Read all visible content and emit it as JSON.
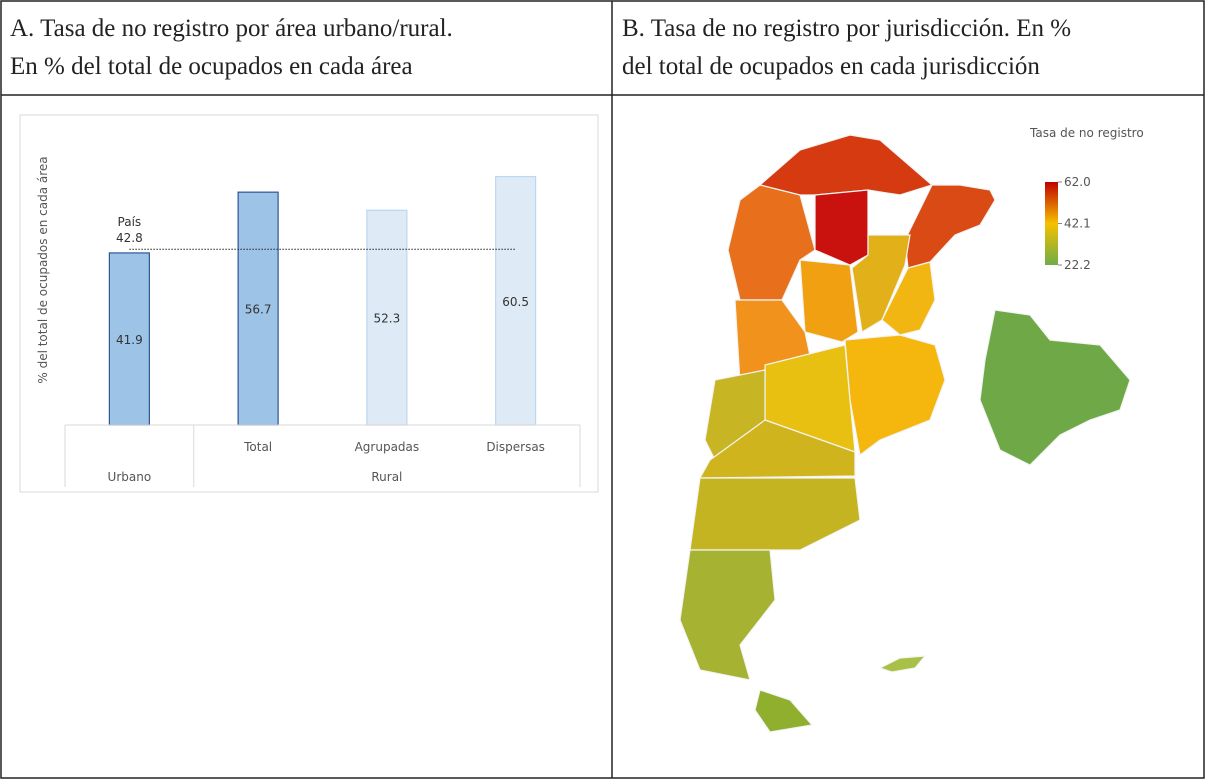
{
  "panels": [
    {
      "title_lines": [
        "A. Tasa de no registro por área urbano/rural.",
        "En % del total de ocupados en cada área"
      ]
    },
    {
      "title_lines": [
        "B. Tasa de no registro por jurisdicción. En %",
        "del total de ocupados en cada jurisdicción"
      ]
    }
  ],
  "chart_data": {
    "type": "bar",
    "y_label": "% del total de ocupados en cada área",
    "categories": [
      null,
      "Total",
      "Agrupadas",
      "Dispersas"
    ],
    "groups": [
      {
        "label": "Urbano",
        "span": 1
      },
      {
        "label": "Rural",
        "span": 3
      }
    ],
    "values": [
      41.9,
      56.7,
      52.3,
      60.5
    ],
    "colors": [
      "#9dc3e6",
      "#9dc3e6",
      "#deebf7",
      "#deebf7"
    ],
    "edge_colors": [
      "#2f5597",
      "#2f5597",
      "#bdd7ee",
      "#bdd7ee"
    ],
    "reference": {
      "label": "País",
      "value": 42.8
    },
    "ylim": [
      0,
      75
    ]
  },
  "map_legend": {
    "title": "Tasa de no registro",
    "ticks": [
      {
        "value": 62,
        "label": "62.0"
      },
      42.1,
      22.2
    ],
    "colors": [
      "#c00000",
      "#f5c000",
      "#70ad47"
    ]
  }
}
